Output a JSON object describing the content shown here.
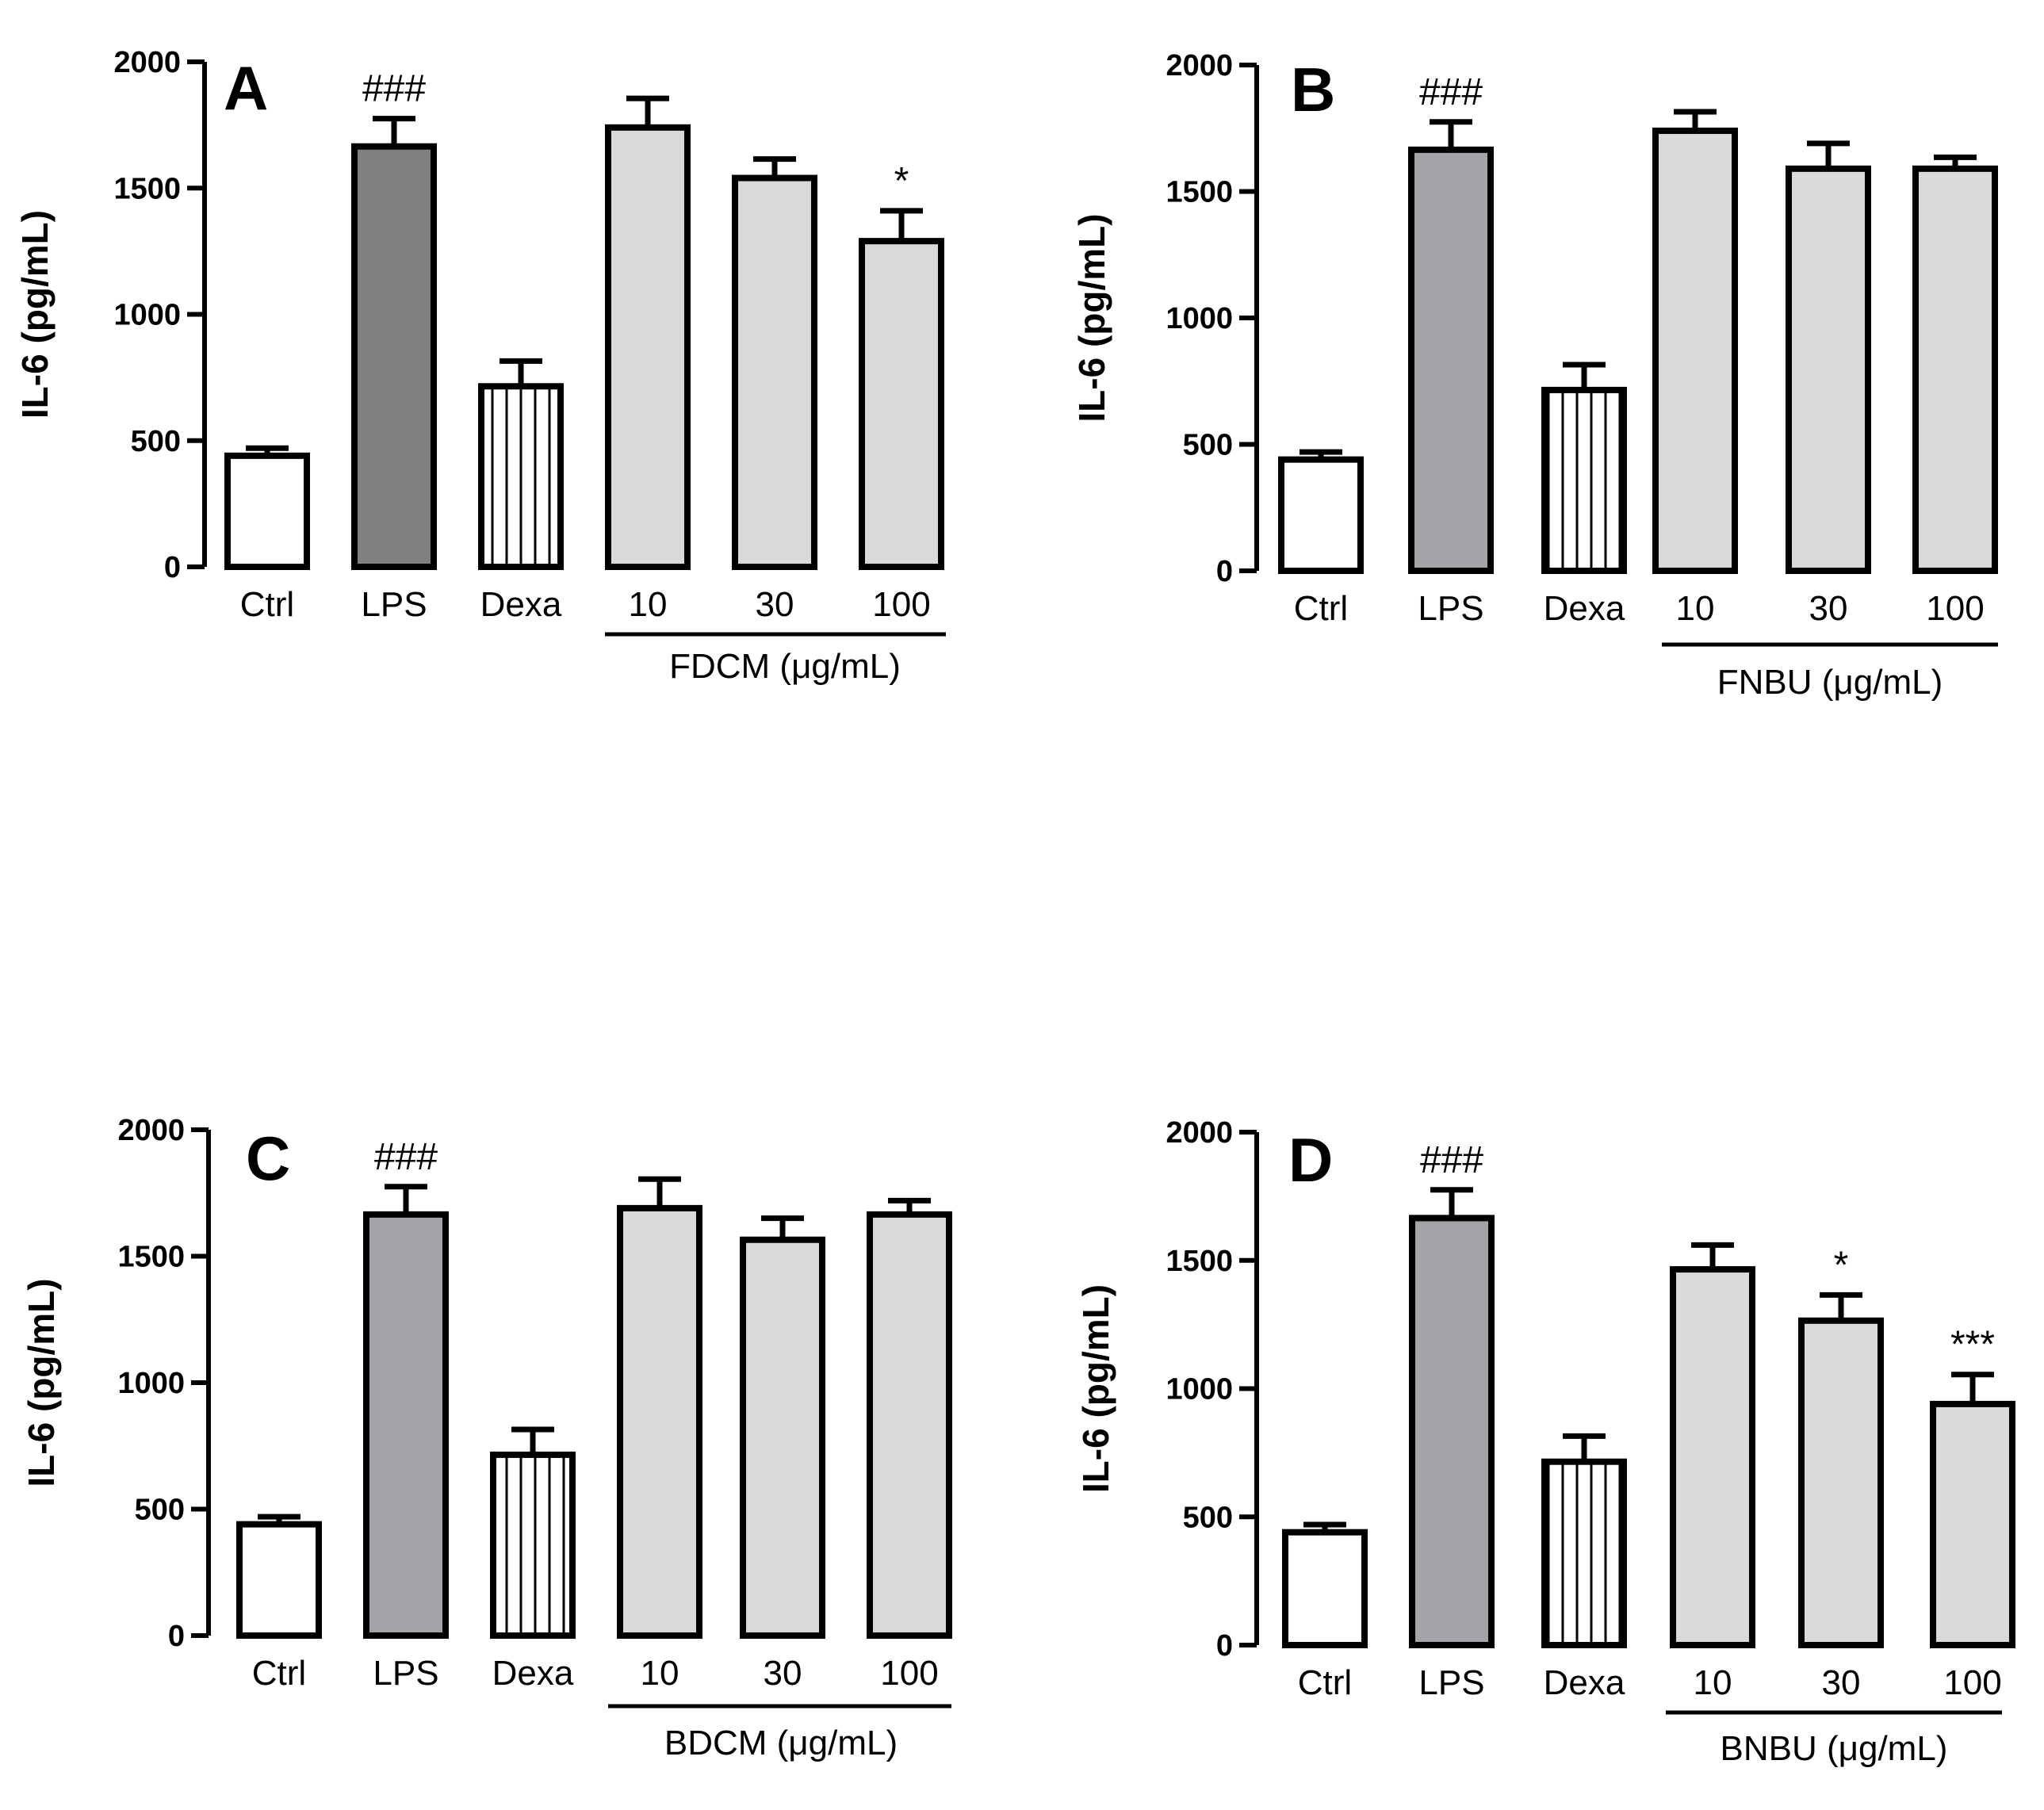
{
  "colors": {
    "ctrl": "#ffffff",
    "lps": "#808080",
    "lps_light": "#a3a3a8",
    "treatment": "#d9d9d9",
    "stroke": "#000000"
  },
  "chart_data": [
    {
      "type": "bar",
      "panel": "A",
      "ylabel": "IL-6 (pg/mL)",
      "ylim": [
        0,
        2000
      ],
      "yticks": [
        "0",
        "500",
        "1000",
        "1500",
        "2000"
      ],
      "categories": [
        "Ctrl",
        "LPS",
        "Dexa",
        "10",
        "30",
        "100"
      ],
      "group_label": "FDCM (μg/mL)",
      "values": [
        440,
        1665,
        715,
        1740,
        1540,
        1290
      ],
      "errors": [
        30,
        110,
        100,
        115,
        75,
        120
      ],
      "annotations": [
        "",
        "###",
        "",
        "",
        "",
        "*"
      ]
    },
    {
      "type": "bar",
      "panel": "B",
      "ylabel": "IL-6 (pg/mL)",
      "ylim": [
        0,
        2000
      ],
      "yticks": [
        "0",
        "500",
        "1000",
        "1500",
        "2000"
      ],
      "categories": [
        "Ctrl",
        "LPS",
        "Dexa",
        "10",
        "30",
        "100"
      ],
      "group_label": "FNBU (μg/mL)",
      "values": [
        440,
        1665,
        715,
        1740,
        1590,
        1590
      ],
      "errors": [
        30,
        110,
        100,
        75,
        100,
        45
      ],
      "annotations": [
        "",
        "###",
        "",
        "",
        "",
        ""
      ]
    },
    {
      "type": "bar",
      "panel": "C",
      "ylabel": "IL-6 (pg/mL)",
      "ylim": [
        0,
        2000
      ],
      "yticks": [
        "0",
        "500",
        "1000",
        "1500",
        "2000"
      ],
      "categories": [
        "Ctrl",
        "LPS",
        "Dexa",
        "10",
        "30",
        "100"
      ],
      "group_label": "BDCM (μg/mL)",
      "values": [
        440,
        1665,
        715,
        1690,
        1565,
        1665
      ],
      "errors": [
        30,
        110,
        100,
        115,
        85,
        55
      ],
      "annotations": [
        "",
        "###",
        "",
        "",
        "",
        ""
      ]
    },
    {
      "type": "bar",
      "panel": "D",
      "ylabel": "IL-6 (pg/mL)",
      "ylim": [
        0,
        2000
      ],
      "yticks": [
        "0",
        "500",
        "1000",
        "1500",
        "2000"
      ],
      "categories": [
        "Ctrl",
        "LPS",
        "Dexa",
        "10",
        "30",
        "100"
      ],
      "group_label": "BNBU (μg/mL)",
      "values": [
        440,
        1665,
        715,
        1465,
        1265,
        940
      ],
      "errors": [
        30,
        110,
        100,
        95,
        100,
        115
      ],
      "annotations": [
        "",
        "###",
        "",
        "",
        "*",
        "***"
      ]
    }
  ]
}
